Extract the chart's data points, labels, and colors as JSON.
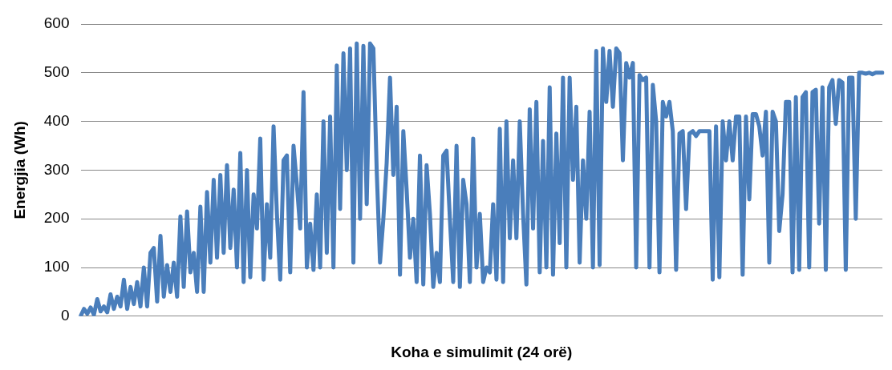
{
  "chart_data": {
    "type": "line",
    "xlabel": "Koha e simulimit (24 orë)",
    "ylabel": "Energjia (Wh)",
    "ylim": [
      0,
      600
    ],
    "yticks": [
      0,
      100,
      200,
      300,
      400,
      500,
      600
    ],
    "grid": "y",
    "legend": false,
    "marker": "none",
    "line_style": "solid",
    "series": [
      {
        "color": "#4a7ebb",
        "values": [
          0,
          15,
          5,
          18,
          3,
          35,
          10,
          20,
          8,
          45,
          15,
          40,
          20,
          75,
          15,
          60,
          25,
          70,
          20,
          100,
          20,
          130,
          140,
          30,
          165,
          40,
          105,
          50,
          110,
          40,
          205,
          60,
          215,
          90,
          130,
          50,
          225,
          50,
          255,
          110,
          280,
          120,
          290,
          130,
          310,
          140,
          260,
          100,
          335,
          70,
          300,
          80,
          250,
          180,
          365,
          75,
          230,
          120,
          390,
          210,
          75,
          320,
          330,
          90,
          350,
          270,
          180,
          460,
          100,
          190,
          95,
          250,
          100,
          400,
          130,
          410,
          100,
          515,
          220,
          540,
          300,
          550,
          110,
          560,
          200,
          555,
          230,
          560,
          550,
          300,
          110,
          200,
          315,
          490,
          290,
          430,
          85,
          380,
          260,
          120,
          200,
          70,
          330,
          65,
          310,
          210,
          60,
          130,
          70,
          330,
          340,
          200,
          70,
          350,
          60,
          280,
          230,
          70,
          365,
          100,
          210,
          70,
          100,
          90,
          230,
          75,
          385,
          70,
          400,
          160,
          320,
          160,
          400,
          210,
          65,
          425,
          180,
          440,
          90,
          360,
          100,
          470,
          85,
          375,
          150,
          490,
          100,
          490,
          280,
          430,
          110,
          320,
          200,
          420,
          100,
          545,
          105,
          550,
          440,
          545,
          430,
          550,
          540,
          320,
          520,
          490,
          520,
          100,
          495,
          485,
          490,
          100,
          475,
          400,
          90,
          440,
          410,
          440,
          380,
          95,
          375,
          380,
          220,
          375,
          380,
          370,
          380,
          380,
          380,
          380,
          75,
          390,
          80,
          400,
          320,
          400,
          320,
          410,
          410,
          85,
          410,
          240,
          415,
          415,
          390,
          330,
          420,
          110,
          420,
          400,
          175,
          250,
          440,
          440,
          90,
          450,
          95,
          450,
          460,
          100,
          460,
          465,
          190,
          470,
          95,
          470,
          485,
          395,
          485,
          480,
          95,
          490,
          490,
          200,
          500,
          500,
          498,
          500,
          497,
          500,
          500,
          500
        ]
      }
    ]
  }
}
